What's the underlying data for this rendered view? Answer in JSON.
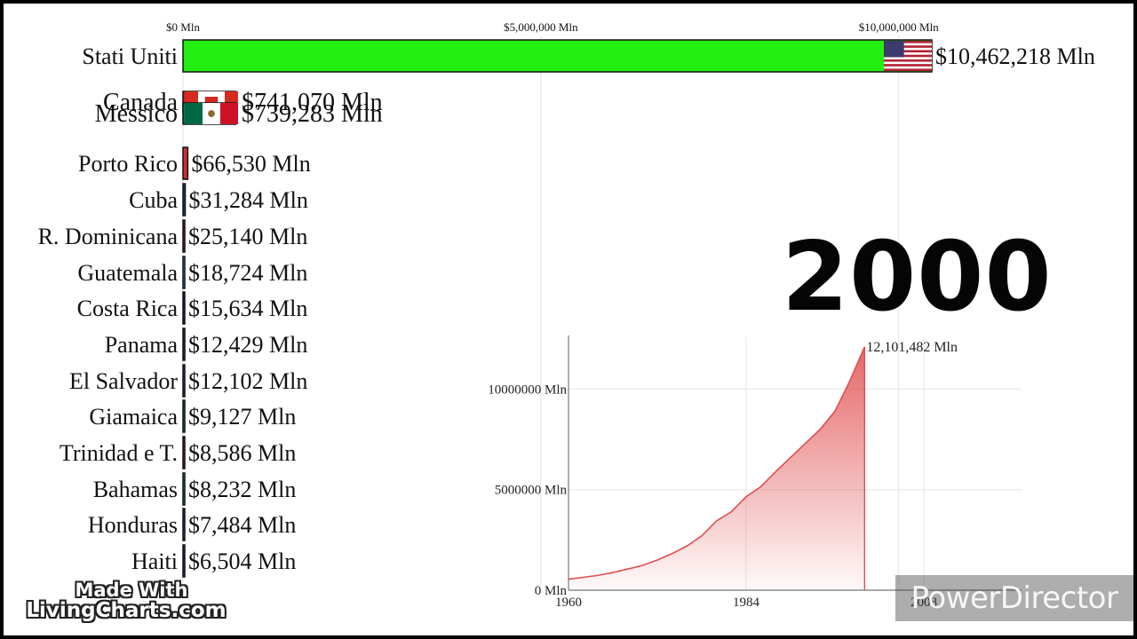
{
  "year": "2000",
  "made_with": {
    "line1": "Made With",
    "line2": "LivingCharts.com"
  },
  "watermark": "PowerDirector",
  "chart_data": [
    {
      "type": "bar",
      "orientation": "horizontal",
      "unit": "Mln",
      "ticks": [
        {
          "value": 0,
          "label": "$0 Mln"
        },
        {
          "value": 5000000,
          "label": "$5,000,000 Mln"
        },
        {
          "value": 10000000,
          "label": "$10,000,000 Mln"
        }
      ],
      "xlim": [
        0,
        10462218
      ],
      "bars": [
        {
          "name": "Stati Uniti",
          "value": 10462218,
          "label": "$10,462,218 Mln",
          "color": "#22ee10",
          "flag": "usa"
        },
        {
          "name": "Canada",
          "value": 741070,
          "label": "$741,070 Mln",
          "color": "#d81e2c",
          "flag": "canada"
        },
        {
          "name": "Messico",
          "value": 739283,
          "label": "$739,283 Mln",
          "color": "#0b7a3e",
          "flag": "mexico"
        },
        {
          "name": "Porto Rico",
          "value": 66530,
          "label": "$66,530 Mln",
          "color": "#cc3030",
          "flag": "puerto-rico"
        },
        {
          "name": "Cuba",
          "value": 31284,
          "label": "$31,284 Mln",
          "color": "#1a3f8f",
          "flag": "cuba"
        },
        {
          "name": "R. Dominicana",
          "value": 25140,
          "label": "$25,140 Mln",
          "color": "#9b2232",
          "flag": "dominican-republic"
        },
        {
          "name": "Guatemala",
          "value": 18724,
          "label": "$18,724 Mln",
          "color": "#4a95d6",
          "flag": "guatemala"
        },
        {
          "name": "Costa Rica",
          "value": 15634,
          "label": "$15,634 Mln",
          "color": "#1c2f80",
          "flag": "costa-rica"
        },
        {
          "name": "Panama",
          "value": 12429,
          "label": "$12,429 Mln",
          "color": "#28367a",
          "flag": "panama"
        },
        {
          "name": "El Salvador",
          "value": 12102,
          "label": "$12,102 Mln",
          "color": "#1f4ea0",
          "flag": "el-salvador"
        },
        {
          "name": "Giamaica",
          "value": 9127,
          "label": "$9,127 Mln",
          "color": "#0a8f3a",
          "flag": "jamaica"
        },
        {
          "name": "Trinidad e T.",
          "value": 8586,
          "label": "$8,586 Mln",
          "color": "#b51e2a",
          "flag": "trinidad-and-tobago"
        },
        {
          "name": "Bahamas",
          "value": 8232,
          "label": "$8,232 Mln",
          "color": "#1792a8",
          "flag": "bahamas"
        },
        {
          "name": "Honduras",
          "value": 7484,
          "label": "$7,484 Mln",
          "color": "#1a4fa0",
          "flag": "honduras"
        },
        {
          "name": "Haiti",
          "value": 6504,
          "label": "$6,504 Mln",
          "color": "#1a3a8c",
          "flag": "haiti"
        }
      ]
    },
    {
      "type": "area",
      "color": "#e14d4d",
      "x_ticks": [
        1960,
        1984,
        2008
      ],
      "y_ticks": [
        {
          "value": 0,
          "label": "0 Mln"
        },
        {
          "value": 5000000,
          "label": "5000000 Mln"
        },
        {
          "value": 10000000,
          "label": "10000000 Mln"
        }
      ],
      "xlim": [
        1960,
        2010
      ],
      "ylim": [
        0,
        12400000
      ],
      "end_label": "12,101,482 Mln",
      "x": [
        1960,
        1962,
        1964,
        1966,
        1968,
        1970,
        1972,
        1974,
        1976,
        1978,
        1980,
        1982,
        1984,
        1986,
        1988,
        1990,
        1992,
        1994,
        1996,
        1998,
        2000
      ],
      "y": [
        550000,
        640000,
        740000,
        880000,
        1050000,
        1230000,
        1500000,
        1820000,
        2200000,
        2700000,
        3450000,
        3900000,
        4650000,
        5150000,
        5900000,
        6600000,
        7300000,
        8000000,
        8900000,
        10400000,
        12101482
      ]
    }
  ]
}
